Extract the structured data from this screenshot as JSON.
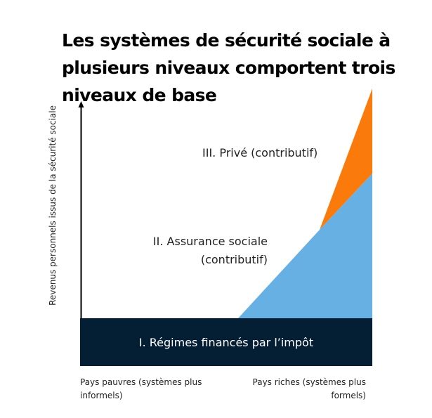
{
  "title": "Les systèmes de sécurité sociale à plusieurs niveaux comportent trois niveaux de base",
  "y_axis_label": "Revenus personnels issus de la sécurité sociale",
  "x_axis": {
    "left_label": "Pays pauvres (systèmes plus informels)",
    "right_label": "Pays riches (systèmes plus formels)"
  },
  "tiers": [
    {
      "label": "I. Régimes financés par l’impôt",
      "color": "#041E34"
    },
    {
      "label": "II. Assurance sociale (contributif)",
      "color": "#67B0E4"
    },
    {
      "label": "III. Privé (contributif)",
      "color": "#FB7A0C"
    }
  ]
}
